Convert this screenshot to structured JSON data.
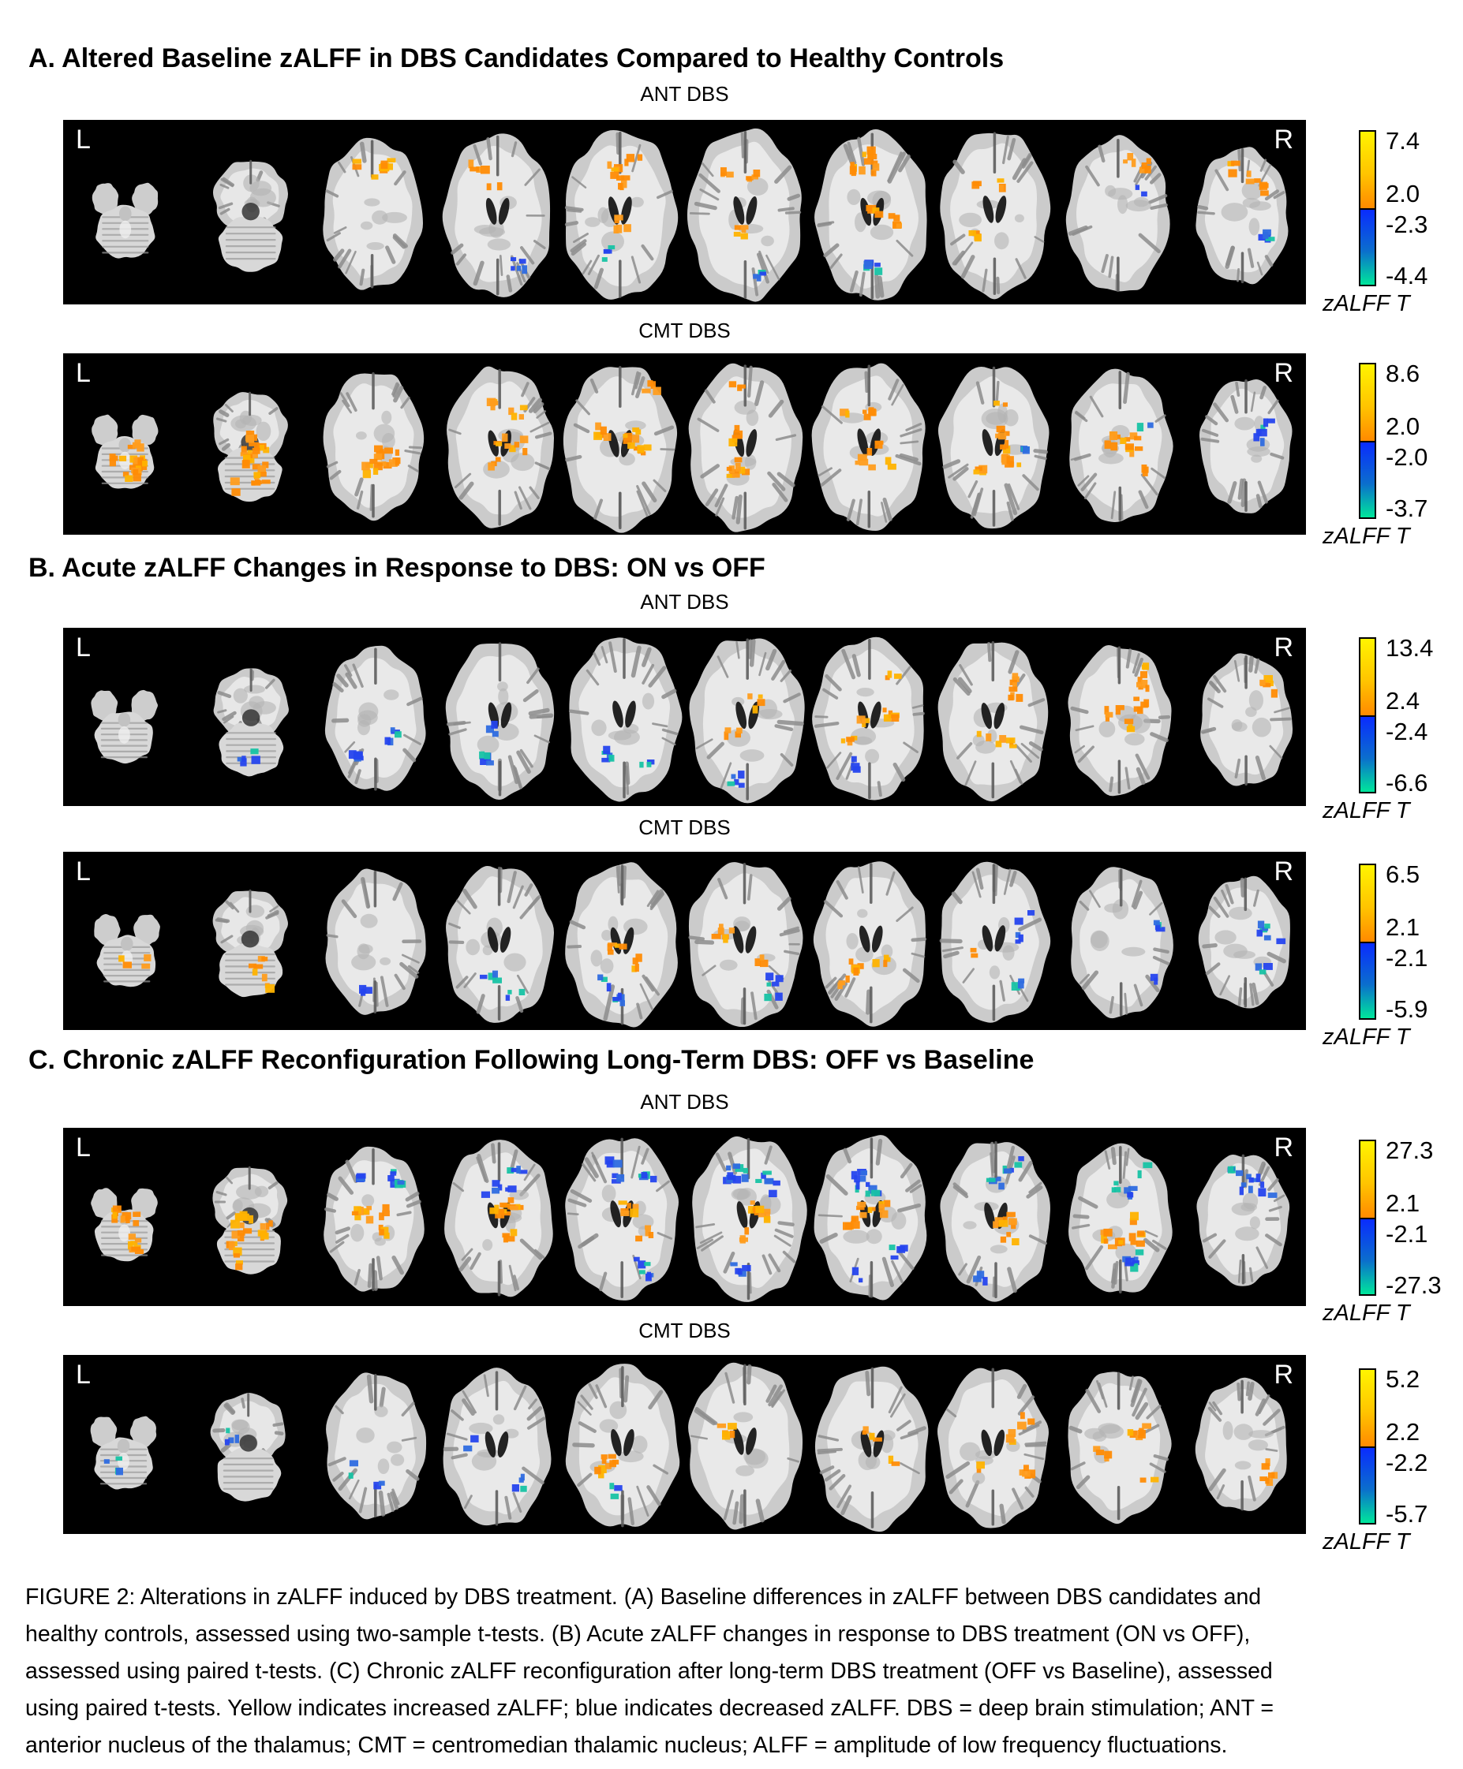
{
  "panels": [
    {
      "title": "A. Altered Baseline zALFF in DBS Candidates Compared to Healthy Controls",
      "rows": [
        {
          "label": "ANT DBS",
          "left_marker": "L",
          "right_marker": "R",
          "colorbar": {
            "max": "7.4",
            "pos": "2.0",
            "neg": "-2.3",
            "min": "-4.4",
            "unit": "zALFF T"
          },
          "activity": [
            {
              "color": "orange",
              "region": "frontal",
              "slices": [
                2,
                9
              ],
              "density": 1.6
            },
            {
              "color": "orange",
              "region": "central",
              "slices": [
                4,
                7
              ],
              "density": 0.8
            },
            {
              "color": "blue",
              "region": "posterior",
              "slices": [
                3,
                6
              ],
              "density": 0.7
            },
            {
              "color": "blue",
              "region": "right",
              "slices": [
                8,
                9
              ],
              "density": 0.8
            }
          ]
        },
        {
          "label": "CMT DBS",
          "left_marker": "L",
          "right_marker": "R",
          "colorbar": {
            "max": "8.6",
            "pos": "2.0",
            "neg": "-2.0",
            "min": "-3.7",
            "unit": "zALFF T"
          },
          "activity": [
            {
              "color": "orange",
              "region": "central",
              "slices": [
                0,
                8
              ],
              "density": 3.0
            },
            {
              "color": "orange",
              "region": "cerebellum",
              "slices": [
                0,
                1
              ],
              "density": 2.5
            },
            {
              "color": "orange",
              "region": "frontal",
              "slices": [
                3,
                7
              ],
              "density": 1.2
            },
            {
              "color": "blue",
              "region": "right",
              "slices": [
                7,
                9
              ],
              "density": 0.9
            }
          ]
        }
      ]
    },
    {
      "title": "B. Acute zALFF Changes in Response to DBS: ON vs OFF",
      "rows": [
        {
          "label": "ANT DBS",
          "left_marker": "L",
          "right_marker": "R",
          "colorbar": {
            "max": "13.4",
            "pos": "2.4",
            "neg": "-2.4",
            "min": "-6.6",
            "unit": "zALFF T"
          },
          "activity": [
            {
              "color": "blue",
              "region": "posterior",
              "slices": [
                1,
                4
              ],
              "density": 1.0
            },
            {
              "color": "blue",
              "region": "central",
              "slices": [
                2,
                3
              ],
              "density": 0.6
            },
            {
              "color": "orange",
              "region": "central",
              "slices": [
                5,
                8
              ],
              "density": 1.6
            },
            {
              "color": "orange",
              "region": "frontal-right",
              "slices": [
                6,
                9
              ],
              "density": 1.2
            },
            {
              "color": "blue",
              "region": "posterior",
              "slices": [
                5,
                6
              ],
              "density": 0.6
            }
          ]
        },
        {
          "label": "CMT DBS",
          "left_marker": "L",
          "right_marker": "R",
          "colorbar": {
            "max": "6.5",
            "pos": "2.1",
            "neg": "-2.1",
            "min": "-5.9",
            "unit": "zALFF T"
          },
          "activity": [
            {
              "color": "orange",
              "region": "cerebellum",
              "slices": [
                0,
                1
              ],
              "density": 1.8
            },
            {
              "color": "blue",
              "region": "posterior",
              "slices": [
                2,
                5
              ],
              "density": 1.0
            },
            {
              "color": "orange",
              "region": "central",
              "slices": [
                4,
                6
              ],
              "density": 1.2
            },
            {
              "color": "orange",
              "region": "left",
              "slices": [
                5,
                7
              ],
              "density": 0.8
            },
            {
              "color": "blue",
              "region": "right",
              "slices": [
                7,
                9
              ],
              "density": 1.6
            }
          ]
        }
      ]
    },
    {
      "title": "C. Chronic zALFF Reconfiguration Following Long-Term DBS: OFF vs Baseline",
      "rows": [
        {
          "label": "ANT DBS",
          "left_marker": "L",
          "right_marker": "R",
          "colorbar": {
            "max": "27.3",
            "pos": "2.1",
            "neg": "-2.1",
            "min": "-27.3",
            "unit": "zALFF T"
          },
          "activity": [
            {
              "color": "orange",
              "region": "central",
              "slices": [
                0,
                8
              ],
              "density": 2.6
            },
            {
              "color": "orange",
              "region": "cerebellum",
              "slices": [
                0,
                1
              ],
              "density": 1.5
            },
            {
              "color": "blue",
              "region": "frontal",
              "slices": [
                2,
                9
              ],
              "density": 2.2
            },
            {
              "color": "blue",
              "region": "posterior",
              "slices": [
                4,
                8
              ],
              "density": 1.2
            }
          ]
        },
        {
          "label": "CMT DBS",
          "left_marker": "L",
          "right_marker": "R",
          "colorbar": {
            "max": "5.2",
            "pos": "2.2",
            "neg": "-2.2",
            "min": "-5.7",
            "unit": "zALFF T"
          },
          "activity": [
            {
              "color": "blue",
              "region": "left",
              "slices": [
                0,
                3
              ],
              "density": 0.8
            },
            {
              "color": "blue",
              "region": "posterior",
              "slices": [
                2,
                4
              ],
              "density": 0.7
            },
            {
              "color": "orange",
              "region": "central",
              "slices": [
                4,
                8
              ],
              "density": 1.4
            },
            {
              "color": "orange",
              "region": "right",
              "slices": [
                7,
                9
              ],
              "density": 1.2
            }
          ]
        }
      ]
    }
  ],
  "figure": {
    "caption_lines": [
      "FIGURE 2: Alterations in zALFF induced by DBS treatment. (A) Baseline differences in zALFF between DBS candidates and",
      "healthy controls, assessed using two-sample t-tests. (B) Acute zALFF changes in response to DBS treatment (ON vs OFF),",
      "assessed using paired t-tests. (C) Chronic zALFF reconfiguration after long-term DBS treatment (OFF vs Baseline), assessed",
      "using paired t-tests. Yellow indicates increased zALFF; blue indicates decreased zALFF. DBS = deep brain stimulation; ANT =",
      "anterior nucleus of the thalamus; CMT = centromedian thalamic nucleus; ALFF = amplitude of low frequency fluctuations."
    ]
  },
  "colors": {
    "positive_high": "#fff400",
    "positive_low": "#ff8a00",
    "negative_high": "#0a2cfe",
    "negative_low": "#00e69b",
    "strip_background": "#000000"
  }
}
